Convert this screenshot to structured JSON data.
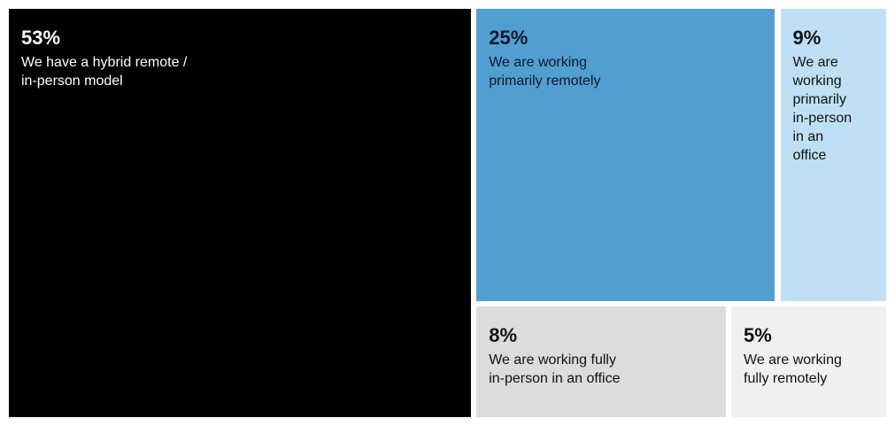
{
  "chart_data": {
    "type": "treemap",
    "items": [
      {
        "value_label": "53%",
        "value": 53,
        "label": "We have a hybrid remote /\nin-person model",
        "color": "#000000",
        "text_color": "#ffffff"
      },
      {
        "value_label": "25%",
        "value": 25,
        "label": "We are working\nprimarily remotely",
        "color": "#519fd0",
        "text_color": "#0a1a2a"
      },
      {
        "value_label": "9%",
        "value": 9,
        "label": "We are\nworking\nprimarily\nin-person\nin an\noffice",
        "color": "#bfe0f4",
        "text_color": "#111111"
      },
      {
        "value_label": "8%",
        "value": 8,
        "label": "We are working fully\nin-person in an office",
        "color": "#dcdcdc",
        "text_color": "#111111"
      },
      {
        "value_label": "5%",
        "value": 5,
        "label": "We are working\nfully remotely",
        "color": "#f0f0f0",
        "text_color": "#111111"
      }
    ]
  }
}
